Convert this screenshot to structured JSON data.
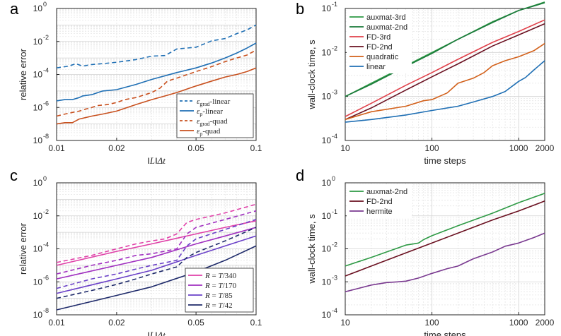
{
  "panel_letters": [
    "a",
    "b",
    "c",
    "d"
  ],
  "chart_data": [
    {
      "panel": "a",
      "type": "line",
      "xscale": "log",
      "yscale": "log",
      "xlabel": "‖L‖Δt",
      "ylabel": "relative error",
      "xlim": [
        0.01,
        0.1
      ],
      "ylim": [
        1e-08,
        1
      ],
      "xticks": [
        0.01,
        0.02,
        0.05,
        0.1
      ],
      "xticklabels": [
        "0.01",
        "0.02",
        "0.05",
        "0.1"
      ],
      "yticks": [
        1e-08,
        1e-06,
        0.0001,
        0.01,
        1
      ],
      "yticklabels": [
        [
          "10",
          "-8"
        ],
        [
          "10",
          "-6"
        ],
        [
          "10",
          "-4"
        ],
        [
          "10",
          "-2"
        ],
        [
          "10",
          "0"
        ]
      ],
      "grid": true,
      "legend_position": "bottom-right",
      "series": [
        {
          "name": "grad-linear",
          "legend": [
            "ε",
            "grad",
            "-linear"
          ],
          "color": "#1f6fb4",
          "dash": true,
          "x": [
            0.01,
            0.0115,
            0.0125,
            0.0135,
            0.015,
            0.017,
            0.02,
            0.025,
            0.03,
            0.035,
            0.04,
            0.05,
            0.06,
            0.07,
            0.08,
            0.09,
            0.1
          ],
          "y": [
            0.00025,
            0.00032,
            0.00045,
            0.00032,
            0.0004,
            0.00045,
            0.00055,
            0.0008,
            0.0013,
            0.0014,
            0.0035,
            0.0045,
            0.011,
            0.015,
            0.03,
            0.05,
            0.1
          ]
        },
        {
          "name": "rho-linear",
          "legend": [
            "ε",
            "ρ",
            "-linear"
          ],
          "color": "#1f6fb4",
          "dash": false,
          "x": [
            0.01,
            0.011,
            0.012,
            0.013,
            0.0135,
            0.015,
            0.017,
            0.02,
            0.025,
            0.03,
            0.04,
            0.05,
            0.06,
            0.07,
            0.08,
            0.09,
            0.1
          ],
          "y": [
            2.5e-06,
            3e-06,
            3e-06,
            4e-06,
            5e-06,
            6e-06,
            1e-05,
            1.2e-05,
            2.5e-05,
            5e-05,
            0.00013,
            0.00025,
            0.0005,
            0.001,
            0.002,
            0.004,
            0.008
          ]
        },
        {
          "name": "grad-quad",
          "legend": [
            "ε",
            "grad",
            "-quad"
          ],
          "color": "#c8501e",
          "dash": true,
          "x": [
            0.01,
            0.011,
            0.012,
            0.013,
            0.014,
            0.015,
            0.016,
            0.018,
            0.02,
            0.022,
            0.025,
            0.03,
            0.033,
            0.036,
            0.04,
            0.05,
            0.06,
            0.07,
            0.08,
            0.09,
            0.1
          ],
          "y": [
            3e-07,
            4e-07,
            5e-07,
            6e-07,
            8e-07,
            1e-06,
            1.3e-06,
            1.5e-06,
            2e-06,
            3e-06,
            4e-06,
            8e-06,
            1.5e-05,
            4e-05,
            6e-05,
            0.00015,
            0.0003,
            0.0006,
            0.001,
            0.0015,
            0.003
          ]
        },
        {
          "name": "rho-quad",
          "legend": [
            "ε",
            "ρ",
            "-quad"
          ],
          "color": "#c8501e",
          "dash": false,
          "x": [
            0.01,
            0.011,
            0.012,
            0.013,
            0.015,
            0.017,
            0.02,
            0.025,
            0.03,
            0.035,
            0.04,
            0.05,
            0.06,
            0.07,
            0.08,
            0.09,
            0.1
          ],
          "y": [
            1e-07,
            1.2e-07,
            1.2e-07,
            2e-07,
            3e-07,
            4e-07,
            6e-07,
            1.5e-06,
            3e-06,
            5e-06,
            8e-06,
            2e-05,
            4e-05,
            7e-05,
            0.0001,
            0.00015,
            0.00025
          ]
        }
      ]
    },
    {
      "panel": "b",
      "type": "line",
      "xscale": "log",
      "yscale": "log",
      "xlabel": "time steps",
      "ylabel": "wall-clock time, s",
      "xlim": [
        10,
        2000
      ],
      "ylim": [
        0.0001,
        0.1
      ],
      "xticks": [
        10,
        100,
        1000,
        2000
      ],
      "xticklabels": [
        "10",
        "100",
        "1000",
        "2000"
      ],
      "yticks": [
        0.0001,
        0.001,
        0.01,
        0.1
      ],
      "yticklabels": [
        [
          "10",
          "-4"
        ],
        [
          "10",
          "-3"
        ],
        [
          "10",
          "-2"
        ],
        [
          "10",
          "-1"
        ]
      ],
      "grid": true,
      "legend_position": "top-left",
      "series": [
        {
          "name": "auxmat-3rd",
          "color": "#2e9a45",
          "x": [
            10,
            20,
            50,
            100,
            200,
            500,
            1000,
            2000
          ],
          "y": [
            0.001,
            0.002,
            0.005,
            0.01,
            0.02,
            0.05,
            0.09,
            0.14
          ]
        },
        {
          "name": "auxmat-2nd",
          "color": "#1a7a3a",
          "x": [
            10,
            20,
            50,
            100,
            200,
            500,
            1000,
            2000
          ],
          "y": [
            0.001,
            0.0019,
            0.0048,
            0.0095,
            0.02,
            0.048,
            0.09,
            0.135
          ]
        },
        {
          "name": "FD-3rd",
          "color": "#e0404a",
          "x": [
            10,
            20,
            50,
            100,
            200,
            500,
            1000,
            2000
          ],
          "y": [
            0.00035,
            0.0007,
            0.0018,
            0.0035,
            0.007,
            0.017,
            0.03,
            0.055
          ]
        },
        {
          "name": "FD-2nd",
          "color": "#6a1020",
          "x": [
            10,
            20,
            50,
            100,
            200,
            500,
            1000,
            2000
          ],
          "y": [
            0.0003,
            0.00055,
            0.0014,
            0.0028,
            0.0055,
            0.014,
            0.025,
            0.045
          ]
        },
        {
          "name": "quadratic",
          "color": "#d2601a",
          "x": [
            10,
            20,
            50,
            80,
            100,
            150,
            200,
            300,
            400,
            500,
            700,
            1000,
            1500,
            2000
          ],
          "y": [
            0.0003,
            0.00045,
            0.0006,
            0.0008,
            0.00085,
            0.0012,
            0.002,
            0.0026,
            0.0035,
            0.005,
            0.0065,
            0.008,
            0.011,
            0.016
          ]
        },
        {
          "name": "linear",
          "color": "#1f6fb4",
          "x": [
            10,
            20,
            50,
            100,
            200,
            300,
            500,
            700,
            1000,
            1200,
            1500,
            2000
          ],
          "y": [
            0.00026,
            0.0003,
            0.00038,
            0.00048,
            0.0006,
            0.00075,
            0.001,
            0.0013,
            0.0022,
            0.0027,
            0.004,
            0.0065
          ]
        }
      ]
    },
    {
      "panel": "c",
      "type": "line",
      "xscale": "log",
      "yscale": "log",
      "xlabel": "‖L‖Δt",
      "ylabel": "relative error",
      "xlim": [
        0.01,
        0.1
      ],
      "ylim": [
        1e-08,
        1
      ],
      "xticks": [
        0.01,
        0.02,
        0.05,
        0.1
      ],
      "xticklabels": [
        "0.01",
        "0.02",
        "0.05",
        "0.1"
      ],
      "yticks": [
        1e-08,
        1e-06,
        0.0001,
        0.01,
        1
      ],
      "yticklabels": [
        [
          "10",
          "-8"
        ],
        [
          "10",
          "-6"
        ],
        [
          "10",
          "-4"
        ],
        [
          "10",
          "-2"
        ],
        [
          "10",
          "0"
        ]
      ],
      "grid": true,
      "legend_position": "bottom-right",
      "series": [
        {
          "name": "R = T/340",
          "legend": [
            "R",
            " = ",
            "T",
            "/340"
          ],
          "color": "#e040a8",
          "dash": false,
          "x": [
            0.01,
            0.02,
            0.03,
            0.05,
            0.07,
            0.1
          ],
          "y": [
            1e-05,
            7e-05,
            0.0002,
            0.0008,
            0.002,
            0.005
          ]
        },
        {
          "name": "R = T/340 (dashed)",
          "color": "#e040a8",
          "dash": true,
          "in_legend": false,
          "x": [
            0.01,
            0.015,
            0.02,
            0.025,
            0.03,
            0.035,
            0.04,
            0.045,
            0.05,
            0.07,
            0.1
          ],
          "y": [
            1.5e-05,
            4e-05,
            0.0001,
            0.0002,
            0.0003,
            0.0004,
            0.0008,
            0.004,
            0.006,
            0.015,
            0.05
          ]
        },
        {
          "name": "R = T/170",
          "legend": [
            "R",
            " = ",
            "T",
            "/170"
          ],
          "color": "#a030c0",
          "dash": false,
          "x": [
            0.01,
            0.02,
            0.03,
            0.05,
            0.07,
            0.1
          ],
          "y": [
            1.5e-06,
            1e-05,
            3e-05,
            0.0002,
            0.0006,
            0.002
          ]
        },
        {
          "name": "R = T/170 (dashed)",
          "color": "#a030c0",
          "dash": true,
          "in_legend": false,
          "x": [
            0.01,
            0.015,
            0.02,
            0.025,
            0.03,
            0.04,
            0.045,
            0.05,
            0.07,
            0.1
          ],
          "y": [
            3e-06,
            1e-05,
            2e-05,
            4e-05,
            5e-05,
            0.0001,
            0.0008,
            0.002,
            0.006,
            0.02
          ]
        },
        {
          "name": "R = T/85",
          "legend": [
            "R",
            " = ",
            "T",
            "/85"
          ],
          "color": "#6a40c8",
          "dash": false,
          "x": [
            0.01,
            0.02,
            0.03,
            0.05,
            0.07,
            0.1
          ],
          "y": [
            2e-07,
            1.5e-06,
            5e-06,
            4e-05,
            0.00015,
            0.0006
          ]
        },
        {
          "name": "R = T/85 (dashed)",
          "color": "#6a40c8",
          "dash": true,
          "in_legend": false,
          "x": [
            0.01,
            0.015,
            0.02,
            0.025,
            0.03,
            0.04,
            0.045,
            0.05,
            0.07,
            0.1
          ],
          "y": [
            4e-07,
            1.5e-06,
            3e-06,
            6e-06,
            1e-05,
            2e-05,
            0.00015,
            0.0004,
            0.0015,
            0.006
          ]
        },
        {
          "name": "R = T/42",
          "legend": [
            "R",
            " = ",
            "T",
            "/42"
          ],
          "color": "#1e2a6a",
          "dash": false,
          "x": [
            0.01,
            0.02,
            0.03,
            0.05,
            0.07,
            0.1
          ],
          "y": [
            2e-08,
            1.5e-07,
            5e-07,
            4e-06,
            2e-05,
            0.00015
          ]
        },
        {
          "name": "R = T/42 (dashed)",
          "color": "#1e2a6a",
          "dash": true,
          "in_legend": false,
          "x": [
            0.01,
            0.015,
            0.02,
            0.025,
            0.03,
            0.04,
            0.045,
            0.05,
            0.07,
            0.1
          ],
          "y": [
            1e-07,
            3e-07,
            7e-07,
            1.5e-06,
            3e-06,
            8e-06,
            3e-05,
            6e-05,
            0.0003,
            0.002
          ]
        }
      ]
    },
    {
      "panel": "d",
      "type": "line",
      "xscale": "log",
      "yscale": "log",
      "xlabel": "time steps",
      "ylabel": "wall-clock time, s",
      "xlim": [
        10,
        2000
      ],
      "ylim": [
        0.0001,
        1
      ],
      "xticks": [
        10,
        100,
        1000,
        2000
      ],
      "xticklabels": [
        "10",
        "100",
        "1000",
        "2000"
      ],
      "yticks": [
        0.0001,
        0.001,
        0.01,
        0.1,
        1
      ],
      "yticklabels": [
        [
          "10",
          "-4"
        ],
        [
          "10",
          "-3"
        ],
        [
          "10",
          "-2"
        ],
        [
          "10",
          "-1"
        ],
        [
          "10",
          "0"
        ]
      ],
      "grid": true,
      "legend_position": "top-left",
      "series": [
        {
          "name": "auxmat-2nd",
          "color": "#2e9a45",
          "x": [
            10,
            20,
            50,
            60,
            70,
            80,
            100,
            200,
            500,
            1000,
            2000
          ],
          "y": [
            0.003,
            0.0055,
            0.013,
            0.014,
            0.015,
            0.019,
            0.025,
            0.05,
            0.12,
            0.25,
            0.48
          ]
        },
        {
          "name": "FD-2nd",
          "color": "#6a1020",
          "x": [
            10,
            20,
            50,
            100,
            200,
            500,
            1000,
            2000
          ],
          "y": [
            0.0015,
            0.003,
            0.0075,
            0.015,
            0.03,
            0.075,
            0.14,
            0.28
          ]
        },
        {
          "name": "hermite",
          "color": "#7a3a90",
          "x": [
            10,
            20,
            30,
            40,
            50,
            70,
            100,
            150,
            200,
            300,
            500,
            700,
            1000,
            1500,
            2000
          ],
          "y": [
            0.0005,
            0.0008,
            0.00095,
            0.001,
            0.00105,
            0.0013,
            0.0018,
            0.0025,
            0.003,
            0.005,
            0.008,
            0.012,
            0.015,
            0.022,
            0.03
          ]
        }
      ]
    }
  ]
}
